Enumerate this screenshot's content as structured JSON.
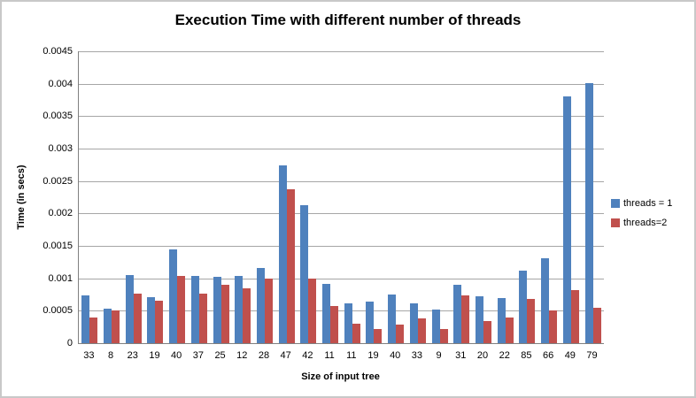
{
  "window": {
    "background": "#ffffff",
    "border_color": "#c8c8c8"
  },
  "chart_data": {
    "type": "bar",
    "title": "Execution Time with different number of threads",
    "xlabel": "Size of input tree",
    "ylabel": "Time (in secs)",
    "categories": [
      "33",
      "8",
      "23",
      "19",
      "40",
      "37",
      "25",
      "12",
      "28",
      "47",
      "42",
      "11",
      "11",
      "19",
      "40",
      "33",
      "9",
      "31",
      "20",
      "22",
      "85",
      "66",
      "49",
      "79"
    ],
    "series": [
      {
        "name": "threads = 1",
        "color": "#4F81BD",
        "values": [
          0.00073,
          0.00053,
          0.00105,
          0.00071,
          0.00145,
          0.00104,
          0.00102,
          0.00104,
          0.00116,
          0.00274,
          0.00213,
          0.00092,
          0.00061,
          0.00064,
          0.00075,
          0.00062,
          0.00052,
          0.0009,
          0.00072,
          0.0007,
          0.00112,
          0.00131,
          0.0038,
          0.00401
        ]
      },
      {
        "name": "threads=2",
        "color": "#C0504D",
        "values": [
          0.0004,
          0.0005,
          0.00077,
          0.00065,
          0.00104,
          0.00077,
          0.0009,
          0.00085,
          0.001,
          0.00237,
          0.001,
          0.00057,
          0.0003,
          0.00022,
          0.00028,
          0.00038,
          0.00022,
          0.00074,
          0.00034,
          0.0004,
          0.00068,
          0.0005,
          0.00082,
          0.00055
        ]
      }
    ],
    "ylim": [
      0,
      0.0045
    ],
    "y_ticks": [
      "0",
      "0.0005",
      "0.001",
      "0.0015",
      "0.002",
      "0.0025",
      "0.003",
      "0.0035",
      "0.004",
      "0.0045"
    ],
    "grid": true,
    "gridline_color": "#A6A6A6",
    "axis_color": "#808080",
    "legend_position": "right"
  }
}
